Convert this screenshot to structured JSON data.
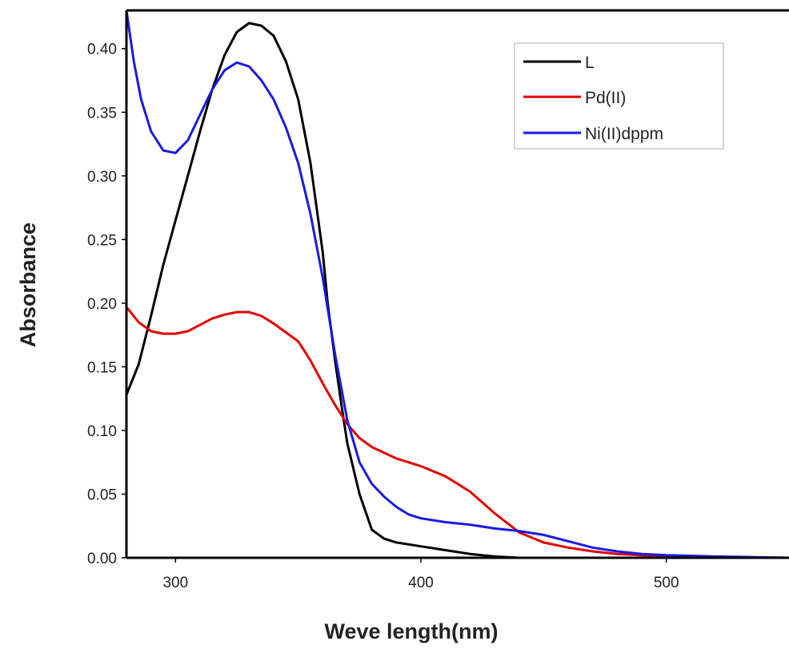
{
  "chart_data": {
    "type": "line",
    "xlabel": "Weve length(nm)",
    "ylabel": "Absorbance",
    "xlim": [
      280,
      550
    ],
    "ylim": [
      0,
      0.43
    ],
    "x_ticks": [
      300,
      400,
      500
    ],
    "y_ticks": [
      0.0,
      0.05,
      0.1,
      0.15,
      0.2,
      0.25,
      0.3,
      0.35,
      0.4
    ],
    "y_tick_labels": [
      "0.00",
      "0.05",
      "0.10",
      "0.15",
      "0.20",
      "0.25",
      "0.30",
      "0.35",
      "0.40"
    ],
    "grid": false,
    "legend_position": "top-right",
    "series": [
      {
        "name": "L",
        "color": "#000000",
        "x": [
          280,
          285,
          290,
          295,
          300,
          305,
          310,
          315,
          320,
          325,
          330,
          335,
          340,
          345,
          350,
          355,
          360,
          362,
          365,
          368,
          370,
          375,
          380,
          385,
          390,
          400,
          410,
          420,
          430,
          440
        ],
        "y": [
          0.128,
          0.152,
          0.19,
          0.23,
          0.265,
          0.3,
          0.335,
          0.368,
          0.395,
          0.413,
          0.42,
          0.418,
          0.41,
          0.39,
          0.36,
          0.31,
          0.24,
          0.2,
          0.155,
          0.115,
          0.09,
          0.05,
          0.022,
          0.015,
          0.012,
          0.009,
          0.006,
          0.003,
          0.001,
          0.0
        ]
      },
      {
        "name": "Pd(II)",
        "color": "#e00000",
        "x": [
          280,
          285,
          290,
          295,
          300,
          305,
          310,
          315,
          320,
          325,
          330,
          335,
          340,
          345,
          350,
          355,
          360,
          365,
          370,
          375,
          380,
          390,
          400,
          410,
          420,
          430,
          440,
          450,
          460,
          470,
          480,
          490,
          500,
          520,
          550
        ],
        "y": [
          0.197,
          0.185,
          0.178,
          0.176,
          0.176,
          0.178,
          0.183,
          0.188,
          0.191,
          0.193,
          0.193,
          0.19,
          0.184,
          0.177,
          0.17,
          0.155,
          0.137,
          0.12,
          0.105,
          0.094,
          0.087,
          0.078,
          0.072,
          0.064,
          0.052,
          0.035,
          0.02,
          0.012,
          0.008,
          0.005,
          0.003,
          0.002,
          0.001,
          0.0005,
          0.0
        ]
      },
      {
        "name": "Ni(II)dppm",
        "color": "#1a1ae0",
        "x": [
          280,
          283,
          286,
          290,
          295,
          300,
          305,
          310,
          315,
          320,
          325,
          330,
          335,
          340,
          345,
          350,
          355,
          360,
          365,
          370,
          375,
          380,
          385,
          390,
          395,
          400,
          410,
          420,
          430,
          440,
          450,
          460,
          470,
          480,
          490,
          500,
          520,
          550
        ],
        "y": [
          0.43,
          0.39,
          0.36,
          0.335,
          0.32,
          0.318,
          0.328,
          0.348,
          0.368,
          0.383,
          0.389,
          0.386,
          0.375,
          0.36,
          0.338,
          0.31,
          0.27,
          0.22,
          0.16,
          0.108,
          0.075,
          0.058,
          0.048,
          0.04,
          0.034,
          0.031,
          0.028,
          0.026,
          0.023,
          0.021,
          0.018,
          0.013,
          0.008,
          0.005,
          0.003,
          0.002,
          0.001,
          0.0
        ]
      }
    ]
  }
}
